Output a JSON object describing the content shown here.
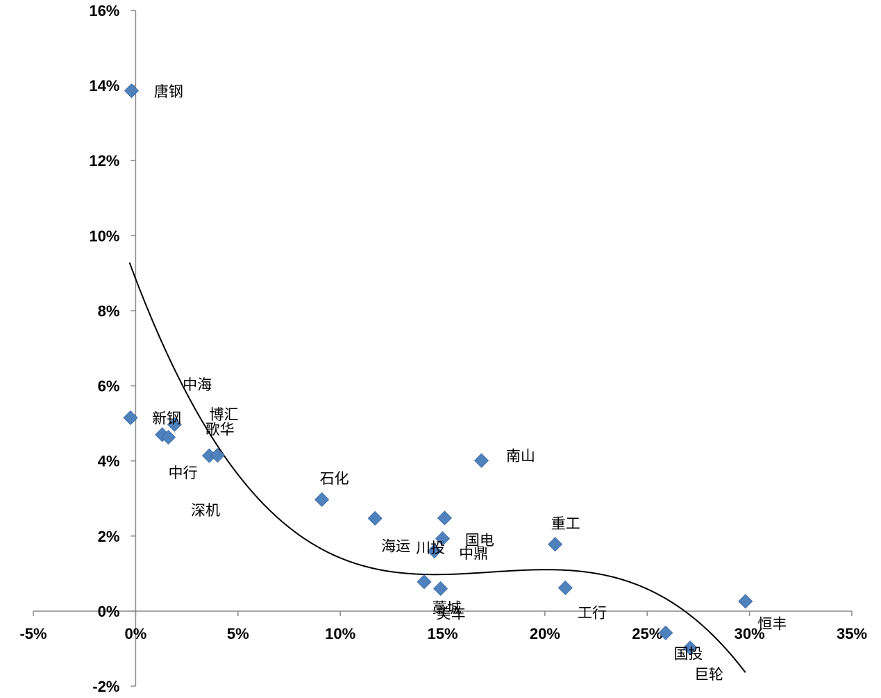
{
  "chart_data": {
    "type": "scatter",
    "title": "",
    "xlabel": "",
    "ylabel": "",
    "xlim": [
      -0.05,
      0.35
    ],
    "ylim": [
      -0.02,
      0.16
    ],
    "x_ticks": [
      -0.05,
      0,
      0.05,
      0.1,
      0.15,
      0.2,
      0.25,
      0.3,
      0.35
    ],
    "x_tick_labels": [
      "-5%",
      "0%",
      "5%",
      "10%",
      "15%",
      "20%",
      "25%",
      "30%",
      "35%"
    ],
    "y_ticks": [
      -0.02,
      0,
      0.02,
      0.04,
      0.06,
      0.08,
      0.1,
      0.12,
      0.14,
      0.16
    ],
    "y_tick_labels": [
      "-2%",
      "0%",
      "2%",
      "4%",
      "6%",
      "8%",
      "10%",
      "12%",
      "14%",
      "16%"
    ],
    "grid": false,
    "legend": "none",
    "marker_color": "#4f81bd",
    "trendline_color": "#000000",
    "points": [
      {
        "x": -0.002,
        "y": 0.1386
      },
      {
        "x": -0.0025,
        "y": 0.0515
      },
      {
        "x": 0.013,
        "y": 0.047
      },
      {
        "x": 0.016,
        "y": 0.0463
      },
      {
        "x": 0.019,
        "y": 0.0497
      },
      {
        "x": 0.036,
        "y": 0.0414
      },
      {
        "x": 0.04,
        "y": 0.0415
      },
      {
        "x": 0.091,
        "y": 0.0297
      },
      {
        "x": 0.117,
        "y": 0.0247
      },
      {
        "x": 0.141,
        "y": 0.0078
      },
      {
        "x": 0.146,
        "y": 0.016
      },
      {
        "x": 0.149,
        "y": 0.006
      },
      {
        "x": 0.15,
        "y": 0.0193
      },
      {
        "x": 0.151,
        "y": 0.0248
      },
      {
        "x": 0.169,
        "y": 0.0401
      },
      {
        "x": 0.205,
        "y": 0.0178
      },
      {
        "x": 0.21,
        "y": 0.0062
      },
      {
        "x": 0.259,
        "y": -0.0058
      },
      {
        "x": 0.271,
        "y": -0.0098
      },
      {
        "x": 0.298,
        "y": 0.0026
      }
    ],
    "annotations": [
      {
        "text": "唐钢",
        "x": 0.009,
        "y": 0.1385
      },
      {
        "text": "中海",
        "x": 0.023,
        "y": 0.0605
      },
      {
        "text": "新钢",
        "x": 0.008,
        "y": 0.0515
      },
      {
        "text": "博汇",
        "x": 0.036,
        "y": 0.0525
      },
      {
        "text": "歌华",
        "x": 0.034,
        "y": 0.0485
      },
      {
        "text": "中行",
        "x": 0.016,
        "y": 0.037
      },
      {
        "text": "深机",
        "x": 0.027,
        "y": 0.027
      },
      {
        "text": "石化",
        "x": 0.09,
        "y": 0.0355
      },
      {
        "text": "南山",
        "x": 0.181,
        "y": 0.0415
      },
      {
        "text": "重工",
        "x": 0.203,
        "y": 0.0235
      },
      {
        "text": "海运",
        "x": 0.12,
        "y": 0.0175
      },
      {
        "text": "川投",
        "x": 0.137,
        "y": 0.017
      },
      {
        "text": "国电",
        "x": 0.161,
        "y": 0.019
      },
      {
        "text": "中鼎",
        "x": 0.158,
        "y": 0.0155
      },
      {
        "text": "藁城",
        "x": 0.145,
        "y": 0.001
      },
      {
        "text": "美车",
        "x": 0.147,
        "y": -0.0005
      },
      {
        "text": "工行",
        "x": 0.216,
        "y": -0.0003
      },
      {
        "text": "恒丰",
        "x": 0.304,
        "y": -0.0033
      },
      {
        "text": "国投",
        "x": 0.263,
        "y": -0.0112
      },
      {
        "text": "巨轮",
        "x": 0.273,
        "y": -0.0167
      }
    ],
    "trendline": {
      "type": "polynomial",
      "order": 3,
      "coefficients": [
        0.0885,
        -1.4224,
        8.4062,
        -16.1535
      ],
      "x_range": [
        -0.003,
        0.298
      ]
    }
  }
}
